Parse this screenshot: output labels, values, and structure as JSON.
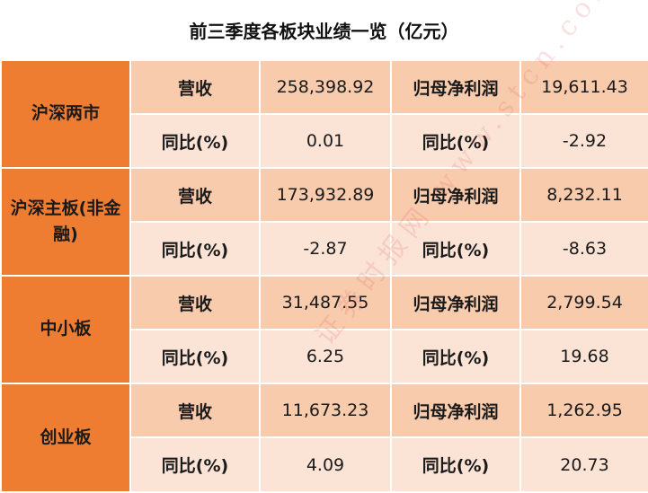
{
  "title": "前三季度各板块业绩一览（亿元）",
  "watermark": "证券时报网 www.stcn.com",
  "labels": {
    "revenue": "营收",
    "net_profit": "归母净利润",
    "yoy": "同比(%)"
  },
  "segments": [
    {
      "name": "沪深两市",
      "revenue": "258,398.92",
      "revenue_yoy": "0.01",
      "net_profit": "19,611.43",
      "net_profit_yoy": "-2.92"
    },
    {
      "name": "沪深主板(非金融)",
      "revenue": "173,932.89",
      "revenue_yoy": "-2.87",
      "net_profit": "8,232.11",
      "net_profit_yoy": "-8.63"
    },
    {
      "name": "中小板",
      "revenue": "31,487.55",
      "revenue_yoy": "6.25",
      "net_profit": "2,799.54",
      "net_profit_yoy": "19.68"
    },
    {
      "name": "创业板",
      "revenue": "11,673.23",
      "revenue_yoy": "4.09",
      "net_profit": "1,262.95",
      "net_profit_yoy": "20.73"
    }
  ]
}
